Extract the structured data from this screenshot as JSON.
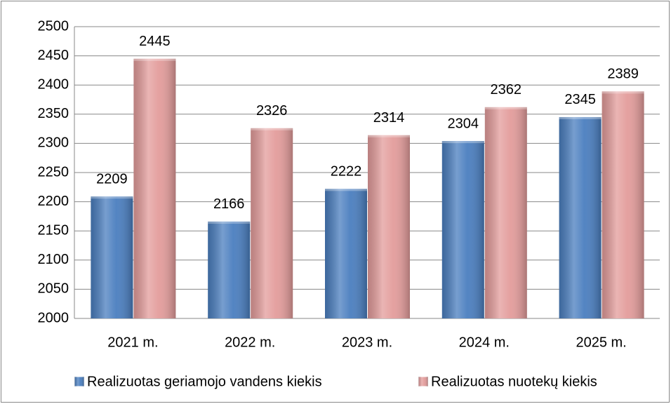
{
  "chart_data": {
    "type": "bar",
    "categories": [
      "2021 m.",
      "2022 m.",
      "2023 m.",
      "2024 m.",
      "2025 m."
    ],
    "series": [
      {
        "name": "Realizuotas geriamojo vandens kiekis",
        "color": "#4a7ebf",
        "values": [
          2209,
          2166,
          2222,
          2304,
          2345
        ]
      },
      {
        "name": "Realizuotas nuotekų kiekis",
        "color": "#e39c9b",
        "values": [
          2445,
          2326,
          2314,
          2362,
          2389
        ]
      }
    ],
    "ylim": [
      2000,
      2500
    ],
    "yticks": [
      2000,
      2050,
      2100,
      2150,
      2200,
      2250,
      2300,
      2350,
      2400,
      2450,
      2500
    ],
    "grid": true,
    "legend": "bottom"
  }
}
